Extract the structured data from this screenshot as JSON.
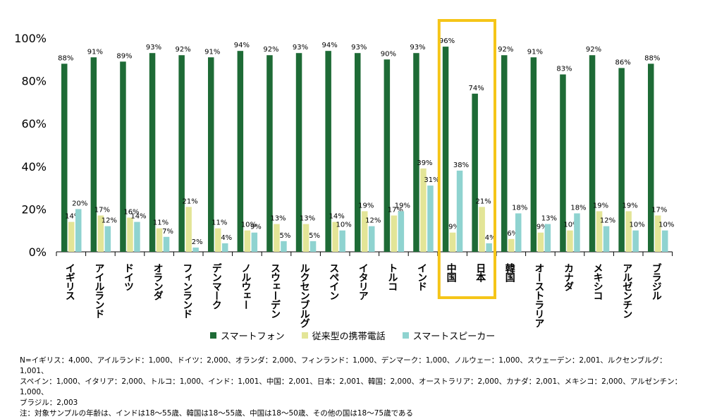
{
  "chart_data": {
    "type": "bar",
    "categories": [
      "イギリス",
      "アイルランド",
      "ドイツ",
      "オランダ",
      "フィンランド",
      "デンマーク",
      "ノルウェー",
      "スウェーデン",
      "ルクセンブルグ",
      "スペイン",
      "イタリア",
      "トルコ",
      "インド",
      "中国",
      "日本",
      "韓国",
      "オーストラリア",
      "カナダ",
      "メキシコ",
      "アルゼンチン",
      "ブラジル"
    ],
    "series": [
      {
        "name": "スマートフォン",
        "color": "#1e6b36",
        "values": [
          88,
          91,
          89,
          93,
          92,
          91,
          94,
          92,
          93,
          94,
          93,
          90,
          93,
          96,
          74,
          92,
          91,
          83,
          92,
          86,
          88
        ]
      },
      {
        "name": "従来型の携帯電話",
        "color": "#e3e597",
        "values": [
          14,
          17,
          16,
          11,
          21,
          11,
          10,
          13,
          13,
          14,
          19,
          17,
          39,
          9,
          21,
          6,
          9,
          10,
          19,
          19,
          17
        ]
      },
      {
        "name": "スマートスピーカー",
        "color": "#8fd3d0",
        "values": [
          20,
          12,
          14,
          7,
          2,
          4,
          9,
          5,
          5,
          10,
          12,
          19,
          31,
          38,
          4,
          18,
          13,
          18,
          12,
          10,
          10
        ]
      }
    ],
    "ylim": [
      0,
      100
    ],
    "yticks": [
      "0%",
      "20%",
      "40%",
      "60%",
      "80%",
      "100%"
    ],
    "highlight": {
      "categories": [
        "中国",
        "日本"
      ],
      "color": "#f5c518"
    },
    "legend_position": "bottom"
  },
  "notes": {
    "sample_line1": "N=イギリス：4,000、アイルランド：1,000、ドイツ：2,000、オランダ：2,000、フィンランド：1,000、デンマーク：1,000、ノルウェー：1,000、スウェーデン：2,001、ルクセンブルグ：1,001、",
    "sample_line2": "スペイン：1,000、イタリア：2,000、トルコ：1,000、インド：1,001、中国：2,001、日本：2,001、韓国：2,000、オーストラリア：2,000、カナダ：2,001、メキシコ：2,000、アルゼンチン：1,000、",
    "sample_line3": "ブラジル：2,003",
    "age_note": "注：対象サンプルの年齢は、インドは18～55歳、韓国は18～55歳、中国は18～50歳、その他の国は18～75歳である"
  }
}
